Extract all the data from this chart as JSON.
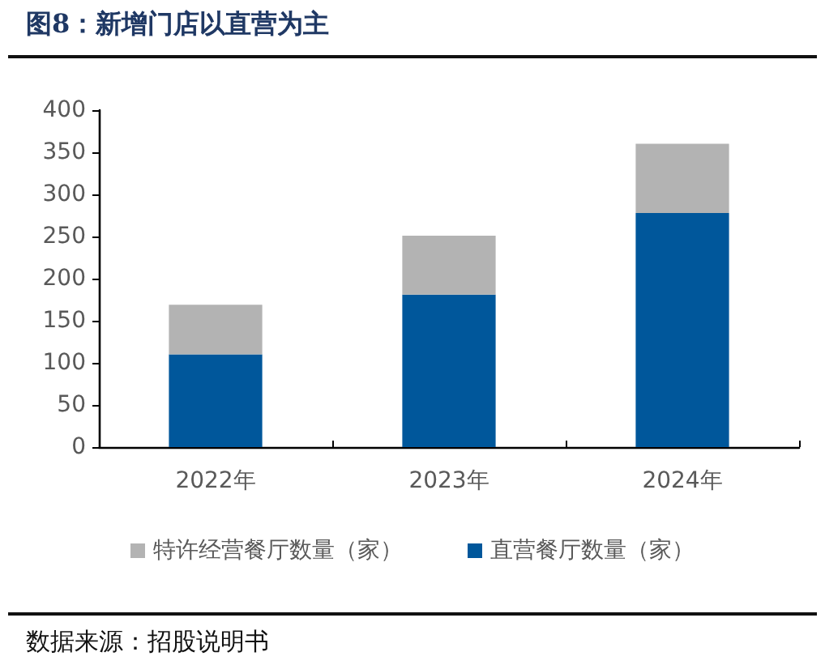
{
  "chart_data": {
    "type": "bar",
    "title": "图8：新增门店以直营为主",
    "categories": [
      "2022年",
      "2023年",
      "2024年"
    ],
    "series": [
      {
        "name": "直营餐厅数量（家）",
        "color": "#00579b",
        "values": [
          110,
          181,
          278
        ]
      },
      {
        "name": "特许经营餐厅数量（家）",
        "color": "#b3b3b3",
        "values": [
          59,
          70,
          82
        ]
      }
    ],
    "stacked": true,
    "ylim": [
      0,
      400
    ],
    "yticks": [
      0,
      50,
      100,
      150,
      200,
      250,
      300,
      350,
      400
    ],
    "legend": "bottom",
    "annotations": [
      "数据来源：招股说明书"
    ]
  }
}
